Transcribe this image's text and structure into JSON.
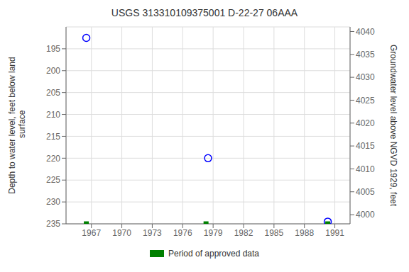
{
  "chart_data": {
    "type": "scatter",
    "title": "USGS 313310109375001 D-22-27 06AAA",
    "ylabel": "Depth to water level, feet below land\n surface",
    "y2label": "Groundwater level above NGVD 1929, feet",
    "series": [
      {
        "x": [
          1966.5,
          1978.5,
          1990.3
        ],
        "values": [
          192.5,
          220.0,
          234.5
        ],
        "color": "#0000ff",
        "marker": "circle"
      },
      {
        "name": "Period of approved data",
        "x": [
          1966.5,
          1978.3,
          1990.3
        ],
        "values": [
          235.0,
          235.0,
          235.0
        ],
        "color": "#008000",
        "marker": "square"
      }
    ],
    "xlim": [
      1964.5,
      1992.5
    ],
    "xticks": [
      1967,
      1970,
      1973,
      1976,
      1979,
      1982,
      1985,
      1988,
      1991
    ],
    "ylim": [
      235,
      190
    ],
    "yticks": [
      195,
      200,
      205,
      210,
      215,
      220,
      225,
      230,
      235
    ],
    "y2lim": [
      3998,
      4041
    ],
    "y2ticks": [
      4000,
      4005,
      4010,
      4015,
      4020,
      4025,
      4030,
      4035,
      4040
    ],
    "grid": true,
    "legend": "bottom"
  }
}
